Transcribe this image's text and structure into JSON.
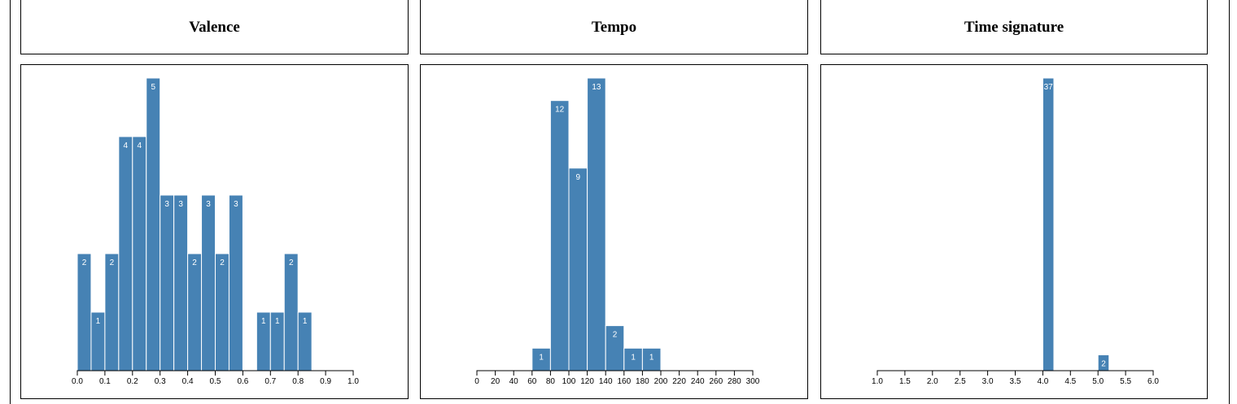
{
  "panels": [
    {
      "title": "Valence"
    },
    {
      "title": "Tempo"
    },
    {
      "title": "Time signature"
    }
  ],
  "colors": {
    "bar": "#4682b4",
    "bar_label": "#ffffff",
    "axis": "#000000"
  },
  "chart_data": [
    {
      "type": "bar",
      "title": "Valence",
      "xlabel": "",
      "ylabel": "",
      "xlim": [
        0.0,
        1.0
      ],
      "ticks": [
        "0.0",
        "0.1",
        "0.2",
        "0.3",
        "0.4",
        "0.5",
        "0.6",
        "0.7",
        "0.8",
        "0.9",
        "1.0"
      ],
      "bin_width": 0.05,
      "bins": [
        {
          "x0": 0.0,
          "x1": 0.05,
          "count": 2
        },
        {
          "x0": 0.05,
          "x1": 0.1,
          "count": 1
        },
        {
          "x0": 0.1,
          "x1": 0.15,
          "count": 2
        },
        {
          "x0": 0.15,
          "x1": 0.2,
          "count": 4
        },
        {
          "x0": 0.2,
          "x1": 0.25,
          "count": 4
        },
        {
          "x0": 0.25,
          "x1": 0.3,
          "count": 5
        },
        {
          "x0": 0.3,
          "x1": 0.35,
          "count": 3
        },
        {
          "x0": 0.35,
          "x1": 0.4,
          "count": 3
        },
        {
          "x0": 0.4,
          "x1": 0.45,
          "count": 2
        },
        {
          "x0": 0.45,
          "x1": 0.5,
          "count": 3
        },
        {
          "x0": 0.5,
          "x1": 0.55,
          "count": 2
        },
        {
          "x0": 0.55,
          "x1": 0.6,
          "count": 3
        },
        {
          "x0": 0.65,
          "x1": 0.7,
          "count": 1
        },
        {
          "x0": 0.7,
          "x1": 0.75,
          "count": 1
        },
        {
          "x0": 0.75,
          "x1": 0.8,
          "count": 2
        },
        {
          "x0": 0.8,
          "x1": 0.85,
          "count": 1
        }
      ],
      "ymax": 5,
      "grid": false
    },
    {
      "type": "bar",
      "title": "Tempo",
      "xlabel": "",
      "ylabel": "",
      "xlim": [
        0,
        300
      ],
      "ticks": [
        "0",
        "20",
        "40",
        "60",
        "80",
        "100",
        "120",
        "140",
        "160",
        "180",
        "200",
        "220",
        "240",
        "260",
        "280",
        "300"
      ],
      "bin_width": 20,
      "bins": [
        {
          "x0": 60,
          "x1": 80,
          "count": 1
        },
        {
          "x0": 80,
          "x1": 100,
          "count": 12
        },
        {
          "x0": 100,
          "x1": 120,
          "count": 9
        },
        {
          "x0": 120,
          "x1": 140,
          "count": 13
        },
        {
          "x0": 140,
          "x1": 160,
          "count": 2
        },
        {
          "x0": 160,
          "x1": 180,
          "count": 1
        },
        {
          "x0": 180,
          "x1": 200,
          "count": 1
        }
      ],
      "ymax": 13,
      "grid": false
    },
    {
      "type": "bar",
      "title": "Time signature",
      "xlabel": "",
      "ylabel": "",
      "xlim": [
        1.0,
        6.0
      ],
      "ticks": [
        "1.0",
        "1.5",
        "2.0",
        "2.5",
        "3.0",
        "3.5",
        "4.0",
        "4.5",
        "5.0",
        "5.5",
        "6.0"
      ],
      "bin_width": 0.2,
      "bins": [
        {
          "x0": 4.0,
          "x1": 4.2,
          "count": 37
        },
        {
          "x0": 5.0,
          "x1": 5.2,
          "count": 2
        }
      ],
      "ymax": 37,
      "grid": false
    }
  ]
}
